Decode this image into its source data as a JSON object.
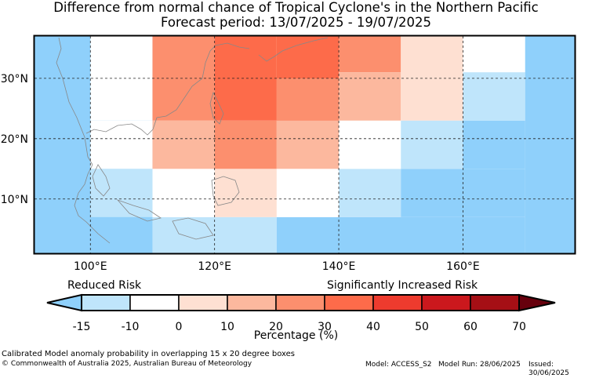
{
  "title": {
    "line1": "Difference from normal chance of Tropical Cyclone's in the Northern Pacific",
    "line2": "Forecast period: 13/07/2025 - 19/07/2025"
  },
  "map": {
    "lon_range": [
      91,
      178
    ],
    "lat_range": [
      1,
      37
    ],
    "lon_ticks": [
      100,
      120,
      140,
      160
    ],
    "lon_labels": [
      "100°E",
      "120°E",
      "140°E",
      "160°E"
    ],
    "lat_ticks": [
      10,
      20,
      30
    ],
    "lat_labels": [
      "10°N",
      "20°N",
      "30°N"
    ],
    "ocean_color": "#ffffff",
    "border_color": "#000000",
    "coast_color": "#888888",
    "cells": [
      {
        "lon0": 91,
        "lon1": 110,
        "lat0": 1,
        "lat1": 37,
        "color": "#8fd0fb"
      },
      {
        "lon0": 110,
        "lon1": 130,
        "lat0": 1,
        "lat1": 7,
        "color": "#bfe5fb"
      },
      {
        "lon0": 130,
        "lon1": 170,
        "lat0": 1,
        "lat1": 7,
        "color": "#8fd0fb"
      },
      {
        "lon0": 170,
        "lon1": 178,
        "lat0": 1,
        "lat1": 37,
        "color": "#8fd0fb"
      },
      {
        "lon0": 91,
        "lon1": 100,
        "lat0": 7,
        "lat1": 15,
        "color": "#8fd0fb"
      },
      {
        "lon0": 100,
        "lon1": 110,
        "lat0": 7,
        "lat1": 15,
        "color": "#bfe5fb"
      },
      {
        "lon0": 110,
        "lon1": 120,
        "lat0": 7,
        "lat1": 15,
        "color": "#ffffff"
      },
      {
        "lon0": 120,
        "lon1": 130,
        "lat0": 7,
        "lat1": 15,
        "color": "#fee0d2"
      },
      {
        "lon0": 130,
        "lon1": 140,
        "lat0": 7,
        "lat1": 15,
        "color": "#ffffff"
      },
      {
        "lon0": 140,
        "lon1": 150,
        "lat0": 7,
        "lat1": 15,
        "color": "#bfe5fb"
      },
      {
        "lon0": 150,
        "lon1": 170,
        "lat0": 7,
        "lat1": 15,
        "color": "#8fd0fb"
      },
      {
        "lon0": 100,
        "lon1": 110,
        "lat0": 15,
        "lat1": 23,
        "color": "#ffffff"
      },
      {
        "lon0": 110,
        "lon1": 120,
        "lat0": 15,
        "lat1": 23,
        "color": "#fcb89e"
      },
      {
        "lon0": 120,
        "lon1": 130,
        "lat0": 15,
        "lat1": 23,
        "color": "#fc8f6e"
      },
      {
        "lon0": 130,
        "lon1": 140,
        "lat0": 15,
        "lat1": 23,
        "color": "#fcb89e"
      },
      {
        "lon0": 140,
        "lon1": 150,
        "lat0": 15,
        "lat1": 23,
        "color": "#ffffff"
      },
      {
        "lon0": 150,
        "lon1": 160,
        "lat0": 15,
        "lat1": 23,
        "color": "#bfe5fb"
      },
      {
        "lon0": 160,
        "lon1": 170,
        "lat0": 15,
        "lat1": 23,
        "color": "#8fd0fb"
      },
      {
        "lon0": 100,
        "lon1": 110,
        "lat0": 23,
        "lat1": 37,
        "color": "#ffffff"
      },
      {
        "lon0": 110,
        "lon1": 120,
        "lat0": 23,
        "lat1": 37,
        "color": "#fc8f6e"
      },
      {
        "lon0": 120,
        "lon1": 130,
        "lat0": 23,
        "lat1": 37,
        "color": "#fd6b4a"
      },
      {
        "lon0": 130,
        "lon1": 140,
        "lat0": 23,
        "lat1": 37,
        "color": "#fd6b4a"
      },
      {
        "lon0": 130,
        "lon1": 140,
        "lat0": 23,
        "lat1": 30,
        "color": "#fc8f6e"
      },
      {
        "lon0": 140,
        "lon1": 150,
        "lat0": 31,
        "lat1": 37,
        "color": "#fc8f6e"
      },
      {
        "lon0": 140,
        "lon1": 150,
        "lat0": 23,
        "lat1": 31,
        "color": "#fcb89e"
      },
      {
        "lon0": 150,
        "lon1": 160,
        "lat0": 23,
        "lat1": 37,
        "color": "#fee0d2"
      },
      {
        "lon0": 160,
        "lon1": 170,
        "lat0": 31,
        "lat1": 37,
        "color": "#ffffff"
      },
      {
        "lon0": 160,
        "lon1": 170,
        "lat0": 23,
        "lat1": 31,
        "color": "#bfe5fb"
      }
    ]
  },
  "legend": {
    "reduced_label": "Reduced Risk",
    "increased_label": "Significantly Increased Risk",
    "ticks": [
      "-15",
      "-10",
      "0",
      "10",
      "20",
      "30",
      "40",
      "50",
      "60",
      "70"
    ],
    "colors": [
      "#bfe5fb",
      "#ffffff",
      "#fee0d2",
      "#fcb89e",
      "#fc8f6e",
      "#fd6b4a",
      "#ee3b2e",
      "#cb181d",
      "#a50f15"
    ],
    "under_color": "#8fd0fb",
    "over_color": "#67000d",
    "xlabel": "Percentage (%)"
  },
  "footer": {
    "note": "Calibrated Model anomaly probability in overlapping 15 x 20 degree boxes",
    "copyright": "© Commonwealth of Australia 2025, Australian Bureau of Meteorology",
    "model": "Model: ACCESS_S2",
    "model_run": "Model Run: 28/06/2025",
    "issued": "Issued: 30/06/2025"
  }
}
